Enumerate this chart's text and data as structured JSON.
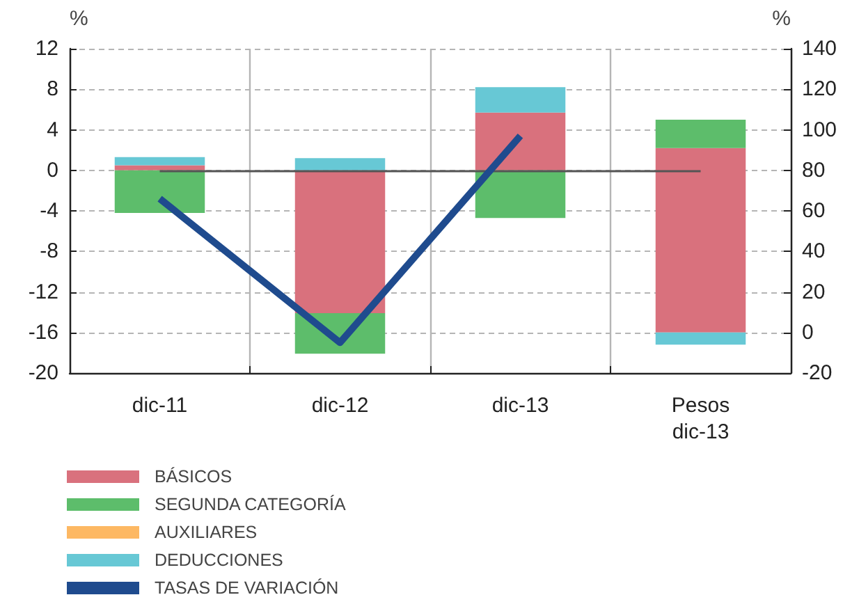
{
  "chart_data": {
    "type": "bar",
    "stacked": true,
    "categories": [
      "dic-11",
      "dic-12",
      "dic-13",
      "Pesos\ndic-13"
    ],
    "series": [
      {
        "name": "BÁSICOS",
        "color": "#d9717d",
        "values": [
          0.5,
          -14.1,
          5.7,
          null
        ]
      },
      {
        "name": "SEGUNDA CATEGORÍA",
        "color": "#5dbd6b",
        "values": [
          -4.2,
          -4.0,
          -4.7,
          null
        ]
      },
      {
        "name": "AUXILIARES",
        "color": "#fdb863",
        "values": [
          null,
          null,
          null,
          null
        ]
      },
      {
        "name": "DEDUCCIONES",
        "color": "#67c8d5",
        "values": [
          0.8,
          1.2,
          2.5,
          null
        ]
      },
      {
        "name": "TASAS DE VARIACIÓN",
        "type": "line",
        "color": "#1f4b8e",
        "values": [
          -2.8,
          -17.0,
          3.4,
          null
        ]
      },
      {
        "color": "#d9717d",
        "axis": "y2",
        "values": [
          null,
          null,
          null,
          91
        ]
      },
      {
        "color": "#5dbd6b",
        "axis": "y2",
        "values": [
          null,
          null,
          null,
          14
        ]
      },
      {
        "color": "#67c8d5",
        "axis": "y2",
        "values": [
          null,
          null,
          null,
          -6
        ]
      }
    ],
    "ylabel": "%",
    "y2label": "%",
    "ylim": [
      -20,
      12
    ],
    "yticks": [
      -20,
      -16,
      -12,
      -8,
      -4,
      0,
      4,
      8,
      12
    ],
    "y2lim": [
      -20,
      140
    ],
    "y2ticks": [
      -20,
      0,
      20,
      40,
      60,
      80,
      100,
      120,
      140
    ],
    "ref_lines": [
      {
        "axis": "y",
        "value": 0,
        "color": "#555555"
      }
    ],
    "grid": true,
    "legend": "bottom left",
    "marker": "none"
  }
}
